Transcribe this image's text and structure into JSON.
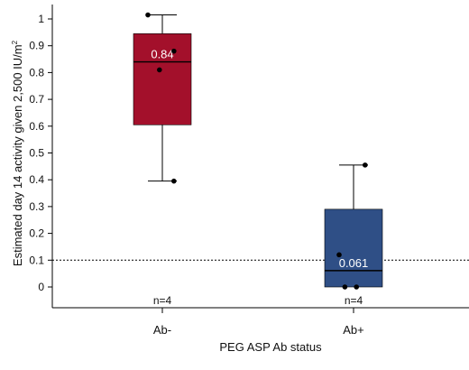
{
  "chart_data": {
    "type": "box",
    "title": "",
    "xlabel": "PEG ASP Ab status",
    "ylabel_main": "Estimated day 14 activity given 2,500 IU/m",
    "ylabel_sup": "2",
    "yticks": [
      0,
      0.1,
      0.2,
      0.3,
      0.4,
      0.5,
      0.6,
      0.7,
      0.8,
      0.9,
      1
    ],
    "ytick_labels": [
      "0",
      "0.1",
      "0.2",
      "0.3",
      "0.4",
      "0.5",
      "0.6",
      "0.7",
      "0.8",
      "0.9",
      "1"
    ],
    "reference_line": 0.1,
    "groups": [
      {
        "category": "Ab-",
        "color": "#a3102b",
        "whisker_low": 0.395,
        "q1": 0.605,
        "median": 0.84,
        "q3": 0.945,
        "whisker_high": 1.015,
        "median_label": "0.84",
        "n_label": "n=4",
        "points": [
          1.015,
          0.88,
          0.81,
          0.395
        ],
        "point_offsets": [
          -0.25,
          0.2,
          -0.05,
          0.2
        ]
      },
      {
        "category": "Ab+",
        "color": "#2f4f86",
        "whisker_low": 0.0,
        "q1": 0.0,
        "median": 0.061,
        "q3": 0.29,
        "whisker_high": 0.455,
        "median_label": "0.061",
        "n_label": "n=4",
        "points": [
          0.455,
          0.12,
          0.0,
          0.0
        ],
        "point_offsets": [
          0.2,
          -0.25,
          -0.15,
          0.05
        ]
      }
    ]
  }
}
